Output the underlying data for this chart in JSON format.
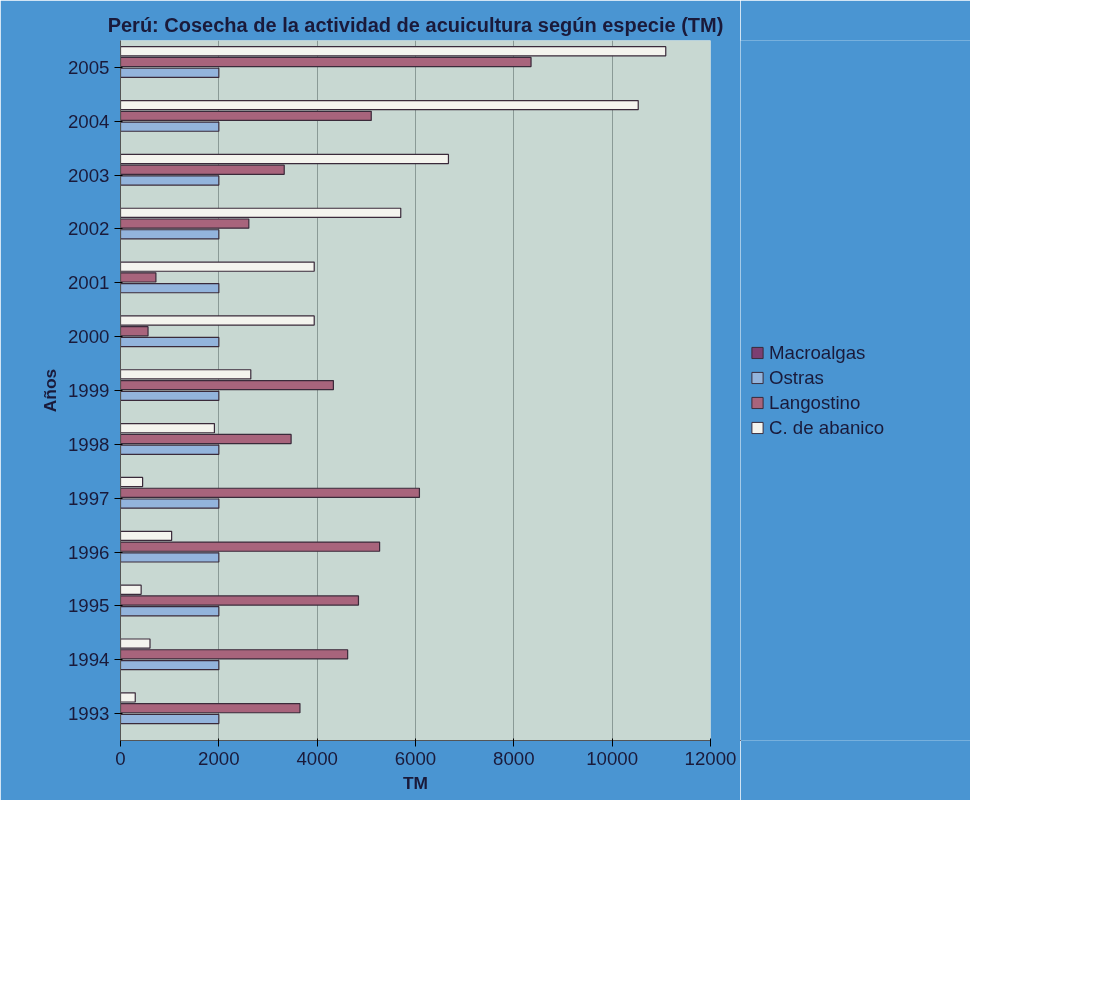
{
  "chart_data": {
    "type": "bar",
    "orientation": "horizontal",
    "title": "Perú: Cosecha de la actividad de acuicultura según especie (TM)",
    "xlabel": "TM",
    "ylabel": "Años",
    "categories": [
      "2005",
      "2004",
      "2003",
      "2002",
      "2001",
      "2000",
      "1999",
      "1998",
      "1997",
      "1996",
      "1995",
      "1994",
      "1993"
    ],
    "series": [
      {
        "name": "C. de abanico",
        "color": "#f4f4ee",
        "values": [
          11090,
          10530,
          6670,
          5700,
          3940,
          3940,
          2650,
          1910,
          450,
          1040,
          420,
          600,
          300
        ]
      },
      {
        "name": "Langostino",
        "color": "#a8647c",
        "values": [
          8350,
          5100,
          3330,
          2610,
          720,
          560,
          4330,
          3470,
          6080,
          5270,
          4840,
          4620,
          3650
        ]
      },
      {
        "name": "Ostras",
        "color": "#93b4dc",
        "values": [
          2000,
          2000,
          2000,
          2000,
          2000,
          2000,
          2000,
          2000,
          2000,
          2000,
          2000,
          2000,
          2000
        ]
      },
      {
        "name": "Macroalgas",
        "color": "#7c3f72",
        "values": [
          null,
          null,
          null,
          null,
          null,
          null,
          null,
          null,
          null,
          null,
          null,
          null,
          null
        ]
      }
    ],
    "xlim": [
      0,
      12000
    ],
    "xticks": [
      0,
      2000,
      4000,
      6000,
      8000,
      10000,
      12000
    ],
    "grid": "x",
    "legend": "right"
  }
}
